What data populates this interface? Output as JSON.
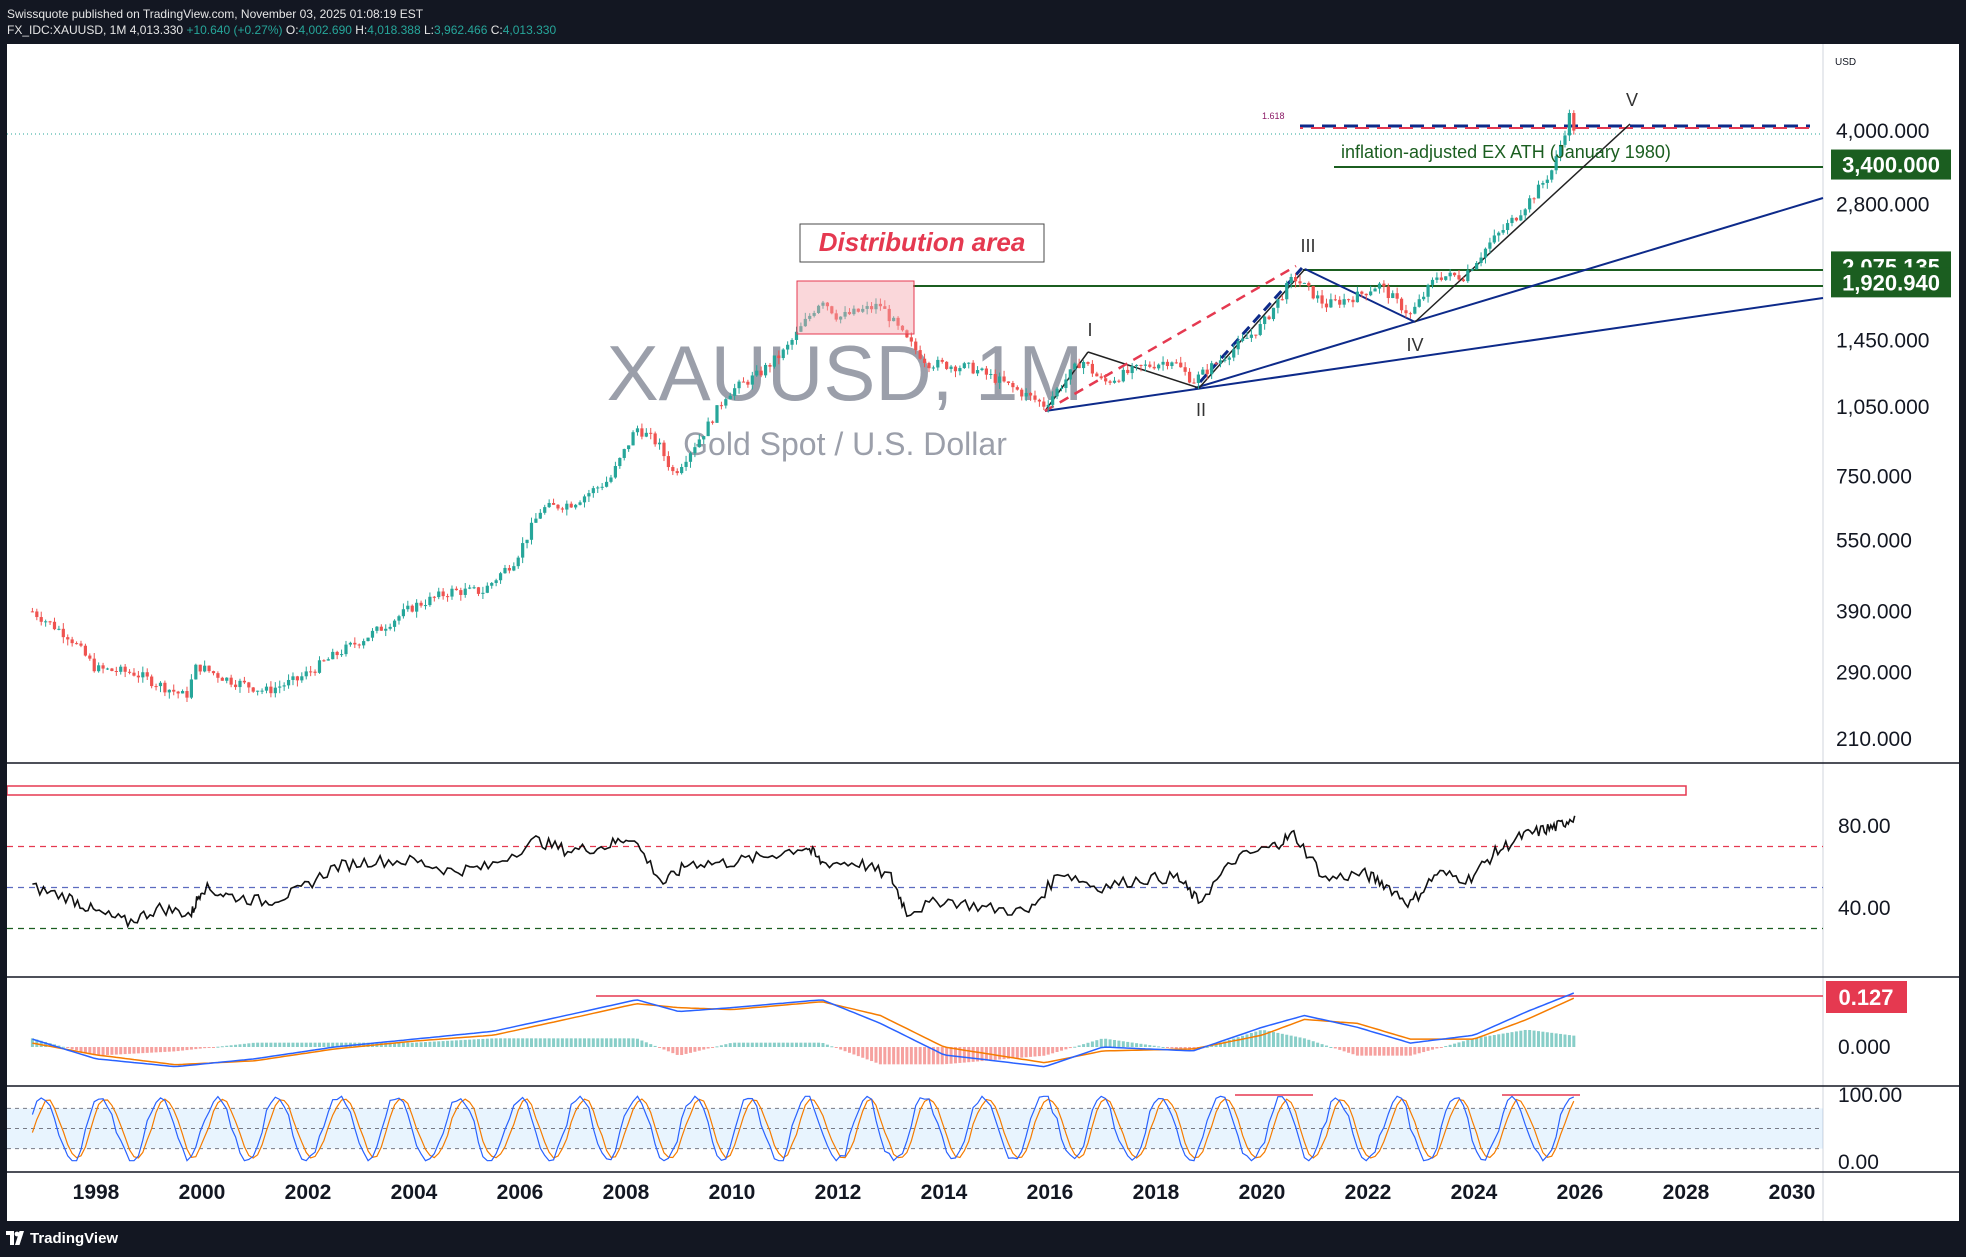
{
  "header": {
    "publisher_line": "Swissquote published on TradingView.com, November 03, 2025 01:08:19 EST",
    "symbol": "FX_IDC:XAUUSD, 1M",
    "last": "4,013.330",
    "change": "+10.640 (+0.27%)",
    "open_label": "O:",
    "open": "4,002.690",
    "high_label": "H:",
    "high": "4,018.388",
    "low_label": "L:",
    "low": "3,962.466",
    "close_label": "C:",
    "close": "4,013.330"
  },
  "footer": {
    "brand": "TradingView"
  },
  "colors": {
    "up": "#26a69a",
    "down": "#ef5350",
    "navy": "#0d2a8a",
    "green_line": "#1b5e20",
    "red_dash": "#e53950",
    "macd": "#2962ff",
    "signal": "#f57c00"
  },
  "chart_data": {
    "type": "candlestick",
    "title": "XAUUSD, 1M",
    "subtitle": "Gold Spot / U.S. Dollar",
    "currency": "USD",
    "scale": "log",
    "x_ticks": [
      "1998",
      "2000",
      "2002",
      "2004",
      "2006",
      "2008",
      "2010",
      "2012",
      "2014",
      "2016",
      "2018",
      "2020",
      "2022",
      "2024",
      "2026",
      "2028",
      "2030"
    ],
    "price_ticks": [
      "4,000.000",
      "2,800.000",
      "1,450.000",
      "1,050.000",
      "750.000",
      "550.000",
      "390.000",
      "290.000",
      "210.000"
    ],
    "price_tick_values": [
      4000,
      2800,
      1450,
      1050,
      750,
      550,
      390,
      290,
      210
    ],
    "price_badges": [
      {
        "label": "3,400.000",
        "value": 3400
      },
      {
        "label": "2,075.135",
        "value": 2075.135
      },
      {
        "label": "1,920.940",
        "value": 1920.94
      }
    ],
    "price_path": [
      [
        1996.8,
        390
      ],
      [
        1997.5,
        345
      ],
      [
        1998.0,
        295
      ],
      [
        1998.7,
        290
      ],
      [
        1999.3,
        270
      ],
      [
        1999.7,
        258
      ],
      [
        1999.9,
        300
      ],
      [
        2000.5,
        280
      ],
      [
        2001.2,
        265
      ],
      [
        2001.8,
        280
      ],
      [
        2002.5,
        315
      ],
      [
        2003.3,
        355
      ],
      [
        2004.0,
        400
      ],
      [
        2004.7,
        430
      ],
      [
        2005.3,
        430
      ],
      [
        2005.9,
        500
      ],
      [
        2006.4,
        640
      ],
      [
        2007.0,
        660
      ],
      [
        2007.7,
        740
      ],
      [
        2008.2,
        950
      ],
      [
        2008.6,
        880
      ],
      [
        2008.9,
        760
      ],
      [
        2009.5,
        940
      ],
      [
        2009.9,
        1120
      ],
      [
        2010.5,
        1230
      ],
      [
        2011.0,
        1380
      ],
      [
        2011.7,
        1780
      ],
      [
        2012.0,
        1620
      ],
      [
        2012.8,
        1720
      ],
      [
        2013.3,
        1450
      ],
      [
        2013.7,
        1300
      ],
      [
        2014.5,
        1270
      ],
      [
        2015.0,
        1200
      ],
      [
        2015.9,
        1060
      ],
      [
        2016.6,
        1320
      ],
      [
        2017.0,
        1180
      ],
      [
        2017.7,
        1270
      ],
      [
        2018.3,
        1320
      ],
      [
        2018.7,
        1190
      ],
      [
        2019.5,
        1400
      ],
      [
        2020.0,
        1560
      ],
      [
        2020.6,
        1970
      ],
      [
        2021.2,
        1720
      ],
      [
        2021.8,
        1800
      ],
      [
        2022.2,
        1900
      ],
      [
        2022.8,
        1640
      ],
      [
        2023.3,
        1980
      ],
      [
        2023.8,
        1980
      ],
      [
        2024.3,
        2320
      ],
      [
        2024.8,
        2650
      ],
      [
        2025.2,
        3000
      ],
      [
        2025.5,
        3350
      ],
      [
        2025.8,
        4300
      ],
      [
        2025.9,
        4013
      ]
    ],
    "annotations": [
      {
        "text": "Distribution area",
        "type": "box-label"
      },
      {
        "text": "inflation-adjusted EX ATH (January 1980)",
        "type": "level-label"
      },
      {
        "text": "I"
      },
      {
        "text": "II"
      },
      {
        "text": "III"
      },
      {
        "text": "IV"
      },
      {
        "text": "V"
      },
      {
        "text": "1.618",
        "type": "fib"
      }
    ],
    "rsi": {
      "ticks": [
        "80.00",
        "40.00"
      ],
      "tick_values": [
        80,
        40
      ],
      "levels": [
        70,
        50,
        30
      ],
      "path": [
        [
          1996.8,
          50
        ],
        [
          1997.5,
          45
        ],
        [
          1998.0,
          38
        ],
        [
          1998.6,
          33
        ],
        [
          1999.2,
          40
        ],
        [
          1999.8,
          37
        ],
        [
          2000.0,
          50
        ],
        [
          2000.5,
          46
        ],
        [
          2001.2,
          43
        ],
        [
          2001.8,
          48
        ],
        [
          2002.5,
          60
        ],
        [
          2003.2,
          63
        ],
        [
          2004.0,
          63
        ],
        [
          2004.7,
          58
        ],
        [
          2005.4,
          60
        ],
        [
          2006.3,
          73
        ],
        [
          2006.9,
          68
        ],
        [
          2007.6,
          70
        ],
        [
          2008.1,
          75
        ],
        [
          2008.7,
          52
        ],
        [
          2009.2,
          62
        ],
        [
          2009.9,
          62
        ],
        [
          2010.6,
          65
        ],
        [
          2011.4,
          70
        ],
        [
          2011.7,
          62
        ],
        [
          2012.4,
          62
        ],
        [
          2013.0,
          55
        ],
        [
          2013.3,
          38
        ],
        [
          2014.0,
          44
        ],
        [
          2014.8,
          40
        ],
        [
          2015.6,
          38
        ],
        [
          2016.2,
          58
        ],
        [
          2016.9,
          50
        ],
        [
          2017.7,
          54
        ],
        [
          2018.4,
          55
        ],
        [
          2018.8,
          43
        ],
        [
          2019.5,
          64
        ],
        [
          2020.2,
          70
        ],
        [
          2020.6,
          76
        ],
        [
          2021.2,
          54
        ],
        [
          2021.9,
          57
        ],
        [
          2022.3,
          52
        ],
        [
          2022.8,
          42
        ],
        [
          2023.3,
          57
        ],
        [
          2023.9,
          54
        ],
        [
          2024.4,
          67
        ],
        [
          2024.9,
          75
        ],
        [
          2025.3,
          78
        ],
        [
          2025.6,
          80
        ],
        [
          2025.9,
          85
        ]
      ]
    },
    "macd": {
      "ticks": [
        "0.127",
        "0.000"
      ],
      "tick_values": [
        0.127,
        0.0
      ],
      "macd_path": [
        [
          1996.8,
          0.02
        ],
        [
          1998.0,
          -0.03
        ],
        [
          1999.5,
          -0.05
        ],
        [
          2001.0,
          -0.03
        ],
        [
          2002.5,
          0.0
        ],
        [
          2004.0,
          0.02
        ],
        [
          2005.5,
          0.04
        ],
        [
          2007.2,
          0.09
        ],
        [
          2008.2,
          0.12
        ],
        [
          2009.0,
          0.09
        ],
        [
          2010.0,
          0.1
        ],
        [
          2011.7,
          0.12
        ],
        [
          2012.8,
          0.06
        ],
        [
          2014.0,
          -0.02
        ],
        [
          2015.9,
          -0.05
        ],
        [
          2017.0,
          0.0
        ],
        [
          2018.7,
          -0.01
        ],
        [
          2020.0,
          0.05
        ],
        [
          2020.8,
          0.08
        ],
        [
          2021.8,
          0.05
        ],
        [
          2022.8,
          0.01
        ],
        [
          2024.0,
          0.03
        ],
        [
          2025.0,
          0.09
        ],
        [
          2025.9,
          0.138
        ]
      ],
      "signal_path": [
        [
          1996.8,
          0.01
        ],
        [
          1998.0,
          -0.02
        ],
        [
          1999.5,
          -0.045
        ],
        [
          2001.0,
          -0.035
        ],
        [
          2002.5,
          -0.005
        ],
        [
          2004.0,
          0.015
        ],
        [
          2005.5,
          0.03
        ],
        [
          2007.2,
          0.08
        ],
        [
          2008.2,
          0.11
        ],
        [
          2009.0,
          0.1
        ],
        [
          2010.0,
          0.095
        ],
        [
          2011.7,
          0.115
        ],
        [
          2012.8,
          0.08
        ],
        [
          2014.0,
          0.0
        ],
        [
          2015.9,
          -0.04
        ],
        [
          2017.0,
          -0.01
        ],
        [
          2018.7,
          -0.005
        ],
        [
          2020.0,
          0.03
        ],
        [
          2020.8,
          0.07
        ],
        [
          2021.8,
          0.06
        ],
        [
          2022.8,
          0.02
        ],
        [
          2024.0,
          0.02
        ],
        [
          2025.0,
          0.07
        ],
        [
          2025.9,
          0.125
        ]
      ]
    },
    "stoch": {
      "ticks": [
        "100.00",
        "0.00"
      ],
      "tick_values": [
        100,
        0
      ],
      "band": [
        80,
        20
      ]
    }
  }
}
